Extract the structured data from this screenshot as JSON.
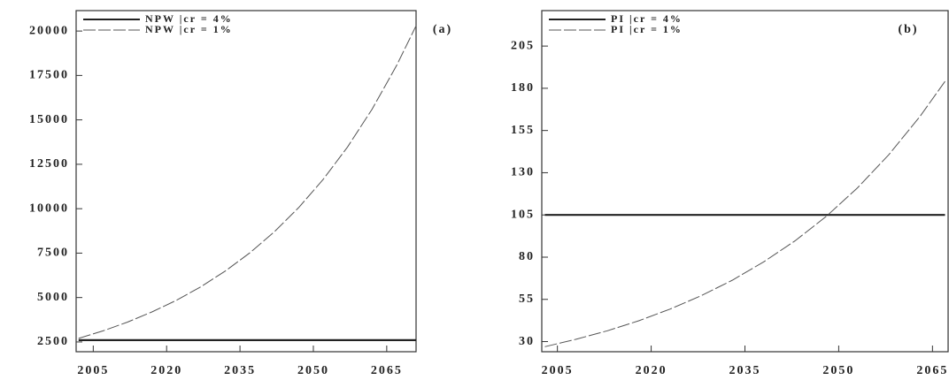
{
  "chart_data": [
    {
      "type": "line",
      "panel_label": "(a)",
      "x": [
        2002,
        2007,
        2012,
        2017,
        2022,
        2027,
        2032,
        2037,
        2042,
        2047,
        2052,
        2057,
        2062,
        2067,
        2071
      ],
      "series": [
        {
          "name": "NPW |cr = 4%",
          "color": "#222222",
          "style": "solid",
          "values": [
            2600,
            2600,
            2600,
            2600,
            2600,
            2600,
            2600,
            2600,
            2600,
            2600,
            2600,
            2600,
            2600,
            2600,
            2600
          ]
        },
        {
          "name": "NPW |cr = 1%",
          "color": "#555555",
          "style": "dashed",
          "values": [
            2700,
            3125,
            3617,
            4186,
            4845,
            5607,
            6490,
            7511,
            8693,
            10061,
            11644,
            13476,
            15597,
            18052,
            20293
          ]
        }
      ],
      "xlim": [
        2001.5,
        2071
      ],
      "xticks": [
        2005,
        2020,
        2035,
        2050,
        2065
      ],
      "ylim": [
        1950,
        21150
      ],
      "yticks": [
        2500,
        5000,
        7500,
        10000,
        12500,
        15000,
        17500,
        20000
      ],
      "legend": "upper left"
    },
    {
      "type": "line",
      "panel_label": "(b)",
      "x": [
        2003,
        2008,
        2013,
        2018,
        2023,
        2028,
        2033,
        2038,
        2043,
        2048,
        2053,
        2058,
        2063,
        2067
      ],
      "series": [
        {
          "name": "PI |cr = 4%",
          "color": "#222222",
          "style": "solid",
          "values": [
            105,
            105,
            105,
            105,
            105,
            105,
            105,
            105,
            105,
            105,
            105,
            105,
            105,
            105
          ]
        },
        {
          "name": "PI |cr = 1%",
          "color": "#555555",
          "style": "dashed",
          "values": [
            27,
            31.4,
            36.4,
            42.3,
            49.2,
            57.2,
            66.4,
            77.2,
            89.6,
            104.1,
            121.0,
            140.6,
            163.3,
            184.1
          ]
        }
      ],
      "xlim": [
        2002.5,
        2067.5
      ],
      "xticks": [
        2005,
        2020,
        2035,
        2050,
        2065
      ],
      "ylim": [
        24,
        226
      ],
      "yticks": [
        30,
        55,
        80,
        105,
        130,
        155,
        180,
        205
      ],
      "legend": "upper left"
    }
  ]
}
